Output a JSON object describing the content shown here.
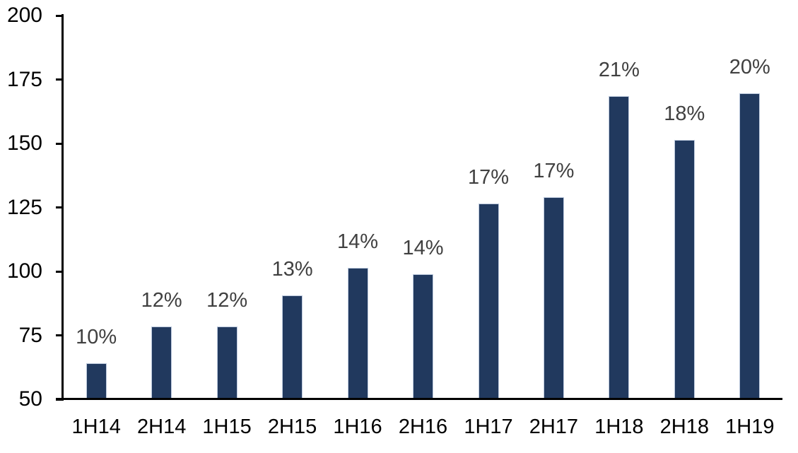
{
  "chart_data": {
    "type": "bar",
    "title": "",
    "xlabel": "",
    "ylabel": "",
    "categories": [
      "1H14",
      "2H14",
      "1H15",
      "2H15",
      "1H16",
      "2H16",
      "1H17",
      "2H17",
      "1H18",
      "2H18",
      "1H19"
    ],
    "values": [
      64,
      78.5,
      78.5,
      90.5,
      101.5,
      99,
      126.5,
      129,
      168.5,
      151.5,
      169.5
    ],
    "data_labels": [
      "10%",
      "12%",
      "12%",
      "13%",
      "14%",
      "14%",
      "17%",
      "17%",
      "21%",
      "18%",
      "20%"
    ],
    "ylim": [
      50,
      200
    ],
    "yticks": [
      50,
      75,
      100,
      125,
      150,
      175,
      200
    ],
    "grid": false,
    "legend": null,
    "colors": {
      "bar_fill": "#21395E",
      "bar_border": "#BCC9DD",
      "data_label": "#404040",
      "axis_text": "#000000",
      "axis_line": "#000000",
      "background": "#ffffff"
    }
  }
}
